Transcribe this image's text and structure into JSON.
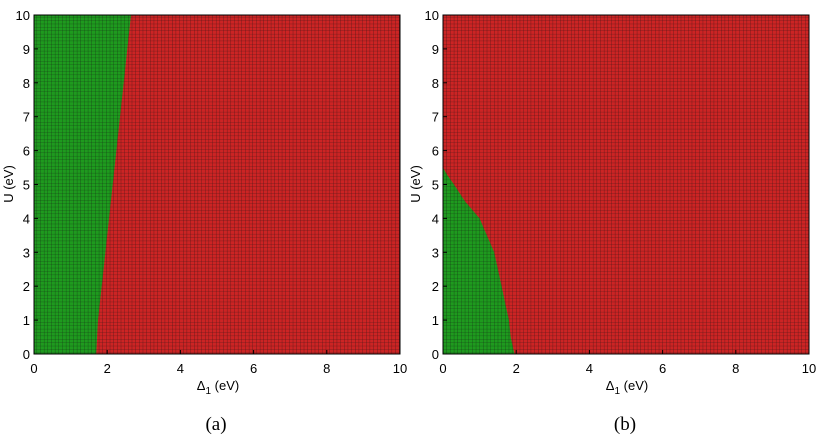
{
  "colors": {
    "phase_a": "#1e9a1e",
    "phase_b": "#cc2424",
    "grid_line": "#111111",
    "axes": "#000000"
  },
  "chart_data": [
    {
      "type": "heatmap",
      "panel_label": "(a)",
      "xlabel": "Δ₁ (eV)",
      "ylabel": "U (eV)",
      "xlim": [
        0,
        10
      ],
      "ylim": [
        0,
        10
      ],
      "x_ticks": [
        "0",
        "2",
        "4",
        "6",
        "8",
        "10"
      ],
      "y_ticks": [
        "0",
        "1",
        "2",
        "3",
        "4",
        "5",
        "6",
        "7",
        "8",
        "9",
        "10"
      ],
      "grid_cells": 100,
      "grid": "on",
      "regions": [
        {
          "color": "#1e9a1e",
          "side": "left of boundary"
        },
        {
          "color": "#cc2424",
          "side": "right of boundary"
        }
      ],
      "boundary": {
        "U": [
          0,
          1,
          2,
          3,
          4,
          5,
          6,
          7,
          8,
          9,
          10
        ],
        "delta1": [
          1.7,
          1.75,
          1.85,
          1.95,
          2.05,
          2.15,
          2.25,
          2.35,
          2.45,
          2.55,
          2.65
        ]
      }
    },
    {
      "type": "heatmap",
      "panel_label": "(b)",
      "xlabel": "Δ₁ (eV)",
      "ylabel": "U (eV)",
      "xlim": [
        0,
        10
      ],
      "ylim": [
        0,
        10
      ],
      "x_ticks": [
        "0",
        "2",
        "4",
        "6",
        "8",
        "10"
      ],
      "y_ticks": [
        "0",
        "1",
        "2",
        "3",
        "4",
        "5",
        "6",
        "7",
        "8",
        "9",
        "10"
      ],
      "grid_cells": 100,
      "grid": "on",
      "regions": [
        {
          "color": "#1e9a1e",
          "side": "left of boundary"
        },
        {
          "color": "#cc2424",
          "side": "right of boundary"
        }
      ],
      "boundary": {
        "U": [
          0,
          0.5,
          1,
          1.5,
          2,
          2.5,
          3,
          3.5,
          4,
          4.5,
          5,
          5.3,
          5.5,
          10
        ],
        "delta1": [
          1.95,
          1.85,
          1.8,
          1.7,
          1.6,
          1.5,
          1.4,
          1.2,
          1.0,
          0.6,
          0.3,
          0.1,
          0,
          0
        ]
      }
    }
  ]
}
